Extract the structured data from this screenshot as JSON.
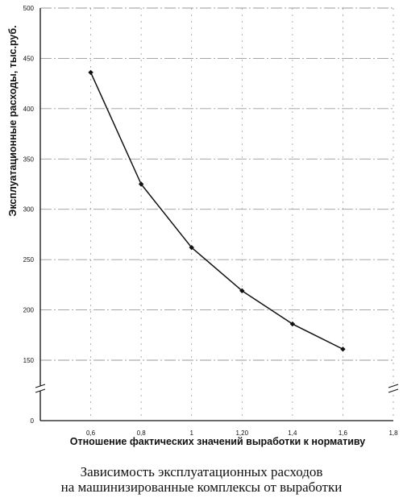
{
  "chart_data": {
    "type": "line",
    "xlabel": "Отношение фактических значений выработки к нормативу",
    "ylabel": "Эксплуатационные расходы, тыс.руб.",
    "x_ticks": [
      "0,6",
      "0,8",
      "1",
      "1,20",
      "1,4",
      "1,6",
      "1,8"
    ],
    "x_tick_values": [
      0.6,
      0.8,
      1.0,
      1.2,
      1.4,
      1.6,
      1.8
    ],
    "y_ticks": [
      "0",
      "150",
      "200",
      "250",
      "300",
      "350",
      "400",
      "450",
      "500"
    ],
    "y_tick_values": [
      0,
      150,
      200,
      250,
      300,
      350,
      400,
      450,
      500
    ],
    "xlim": [
      0.4,
      1.8
    ],
    "ylim": [
      0,
      500
    ],
    "y_axis_break": "between 0 and 150",
    "grid": true,
    "series": [
      {
        "x": [
          0.6,
          0.8,
          1.0,
          1.2,
          1.4,
          1.6
        ],
        "y": [
          436,
          325,
          262,
          219,
          186,
          161
        ]
      }
    ],
    "colors": {
      "line": "#111111",
      "grid": "#9a9a9a",
      "axis": "#111111"
    }
  },
  "caption": {
    "line1": "Зависимость эксплуатационных расходов",
    "line2": "на машинизированные комплексы от выработки"
  }
}
